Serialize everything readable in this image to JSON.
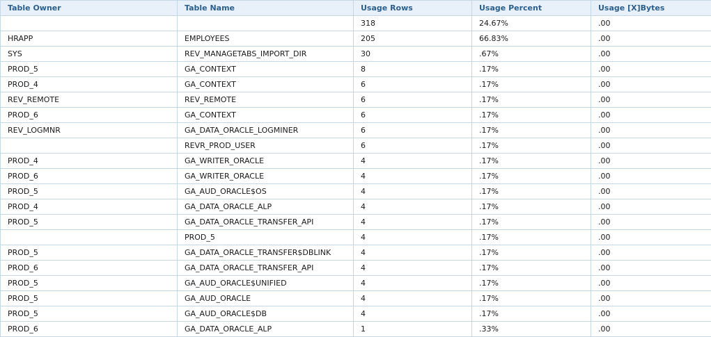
{
  "table": {
    "columns": [
      "Table Owner",
      "Table Name",
      "Usage Rows",
      "Usage Percent",
      "Usage [X]Bytes"
    ],
    "rows": [
      [
        "",
        "",
        "318",
        "24.67%",
        ".00"
      ],
      [
        "HRAPP",
        "EMPLOYEES",
        "205",
        "66.83%",
        ".00"
      ],
      [
        "SYS",
        "REV_MANAGETABS_IMPORT_DIR",
        "30",
        ".67%",
        ".00"
      ],
      [
        "PROD_5",
        "GA_CONTEXT",
        "8",
        ".17%",
        ".00"
      ],
      [
        "PROD_4",
        "GA_CONTEXT",
        "6",
        ".17%",
        ".00"
      ],
      [
        "REV_REMOTE",
        "REV_REMOTE",
        "6",
        ".17%",
        ".00"
      ],
      [
        "PROD_6",
        "GA_CONTEXT",
        "6",
        ".17%",
        ".00"
      ],
      [
        "REV_LOGMNR",
        "GA_DATA_ORACLE_LOGMINER",
        "6",
        ".17%",
        ".00"
      ],
      [
        "",
        "REVR_PROD_USER",
        "6",
        ".17%",
        ".00"
      ],
      [
        "PROD_4",
        "GA_WRITER_ORACLE",
        "4",
        ".17%",
        ".00"
      ],
      [
        "PROD_6",
        "GA_WRITER_ORACLE",
        "4",
        ".17%",
        ".00"
      ],
      [
        "PROD_5",
        "GA_AUD_ORACLE$OS",
        "4",
        ".17%",
        ".00"
      ],
      [
        "PROD_4",
        "GA_DATA_ORACLE_ALP",
        "4",
        ".17%",
        ".00"
      ],
      [
        "PROD_5",
        "GA_DATA_ORACLE_TRANSFER_API",
        "4",
        ".17%",
        ".00"
      ],
      [
        "",
        "PROD_5",
        "4",
        ".17%",
        ".00"
      ],
      [
        "PROD_5",
        "GA_DATA_ORACLE_TRANSFER$DBLINK",
        "4",
        ".17%",
        ".00"
      ],
      [
        "PROD_6",
        "GA_DATA_ORACLE_TRANSFER_API",
        "4",
        ".17%",
        ".00"
      ],
      [
        "PROD_5",
        "GA_AUD_ORACLE$UNIFIED",
        "4",
        ".17%",
        ".00"
      ],
      [
        "PROD_5",
        "GA_AUD_ORACLE",
        "4",
        ".17%",
        ".00"
      ],
      [
        "PROD_5",
        "GA_AUD_ORACLE$DB",
        "4",
        ".17%",
        ".00"
      ],
      [
        "PROD_6",
        "GA_DATA_ORACLE_ALP",
        "1",
        ".33%",
        ".00"
      ]
    ]
  },
  "colors": {
    "header_bg": "#e8f1fa",
    "header_text": "#2a5f8f",
    "border": "#c5d7e3"
  }
}
